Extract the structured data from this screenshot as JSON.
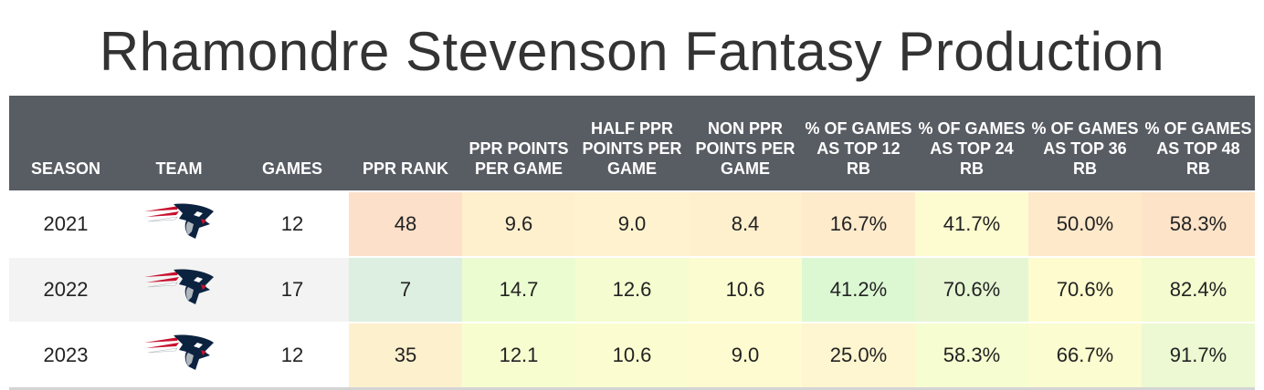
{
  "title": "Rhamondre Stevenson Fantasy Production",
  "headers": [
    "SEASON",
    "TEAM",
    "GAMES",
    "PPR RANK",
    "PPR POINTS PER GAME",
    "HALF PPR POINTS PER GAME",
    "NON PPR POINTS PER GAME",
    "% OF GAMES AS TOP 12 RB",
    "% OF GAMES AS TOP 24 RB",
    "% OF GAMES AS TOP 36 RB",
    "% OF GAMES AS TOP 48 RB"
  ],
  "rows": [
    {
      "season": "2021",
      "team_icon": "patriots-logo-icon",
      "games": "12",
      "cells": [
        "48",
        "9.6",
        "9.0",
        "8.4",
        "16.7%",
        "41.7%",
        "50.0%",
        "58.3%"
      ],
      "colors": [
        "#fde0c9",
        "#fff0cd",
        "#fff3cf",
        "#fff0cd",
        "#feebcc",
        "#fdfcd0",
        "#fee9ca",
        "#fde3c8"
      ]
    },
    {
      "season": "2022",
      "team_icon": "patriots-logo-icon",
      "games": "17",
      "cells": [
        "7",
        "14.7",
        "12.6",
        "10.6",
        "41.2%",
        "70.6%",
        "70.6%",
        "82.4%"
      ],
      "colors": [
        "#dcefe0",
        "#ecfcd1",
        "#f4fcd0",
        "#fbfdd0",
        "#dcf8d3",
        "#e6f6d3",
        "#fefcce",
        "#f3fbcf"
      ]
    },
    {
      "season": "2023",
      "team_icon": "patriots-logo-icon",
      "games": "12",
      "cells": [
        "35",
        "12.1",
        "10.6",
        "9.0",
        "25.0%",
        "58.3%",
        "66.7%",
        "91.7%"
      ],
      "colors": [
        "#fdf0cd",
        "#f8fdd0",
        "#fbfdd0",
        "#fdfbcf",
        "#fef6d0",
        "#f6fdd0",
        "#fbfccf",
        "#ecf9d2"
      ]
    }
  ]
}
